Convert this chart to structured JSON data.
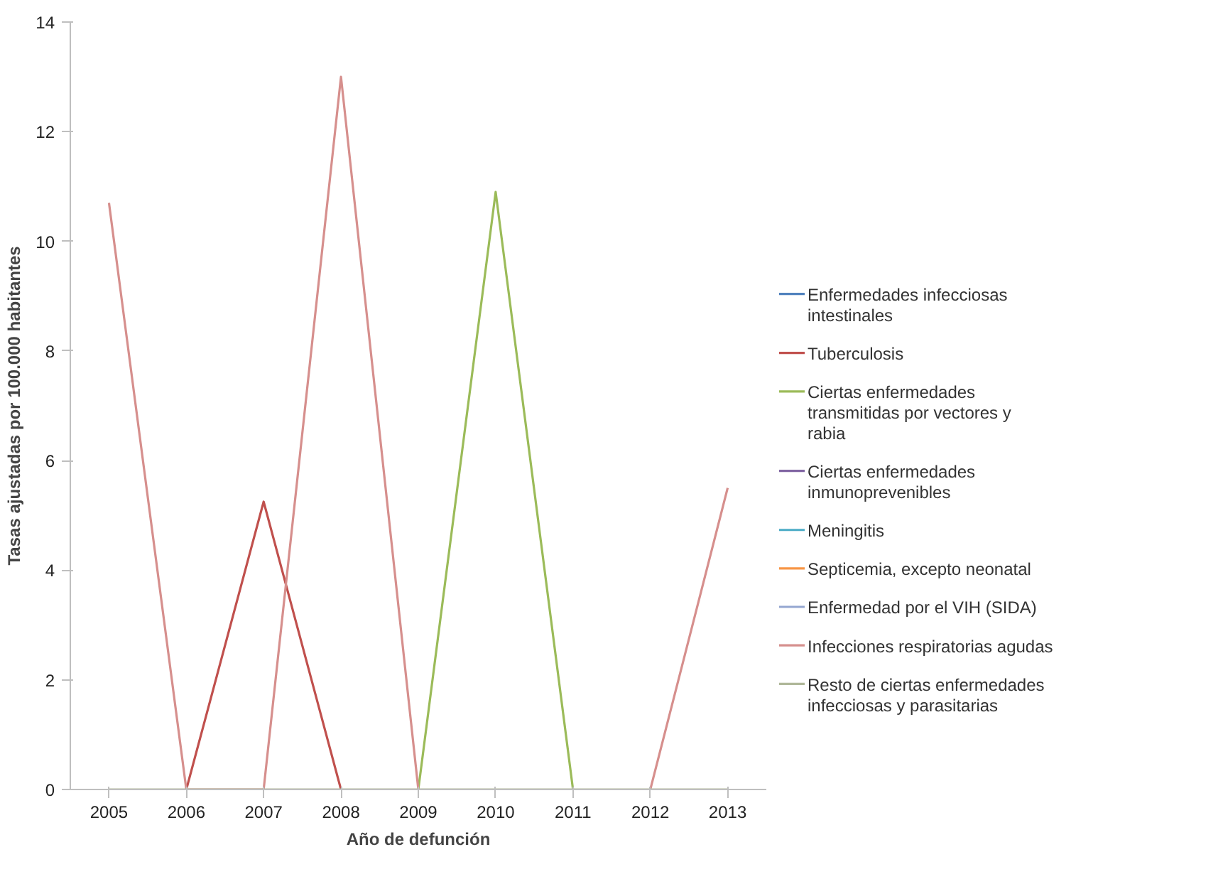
{
  "chart_data": {
    "type": "line",
    "xlabel": "Año de defunción",
    "ylabel": "Tasas ajustadas por 100.000 habitantes",
    "categories": [
      "2005",
      "2006",
      "2007",
      "2008",
      "2009",
      "2010",
      "2011",
      "2012",
      "2013"
    ],
    "ylim": [
      0,
      14
    ],
    "yticks": [
      0,
      2,
      4,
      6,
      8,
      10,
      12,
      14
    ],
    "grid": false,
    "legend": "right",
    "series": [
      {
        "name": "Enfermedades infecciosas intestinales",
        "color": "#4f81bd",
        "values": [
          null,
          null,
          null,
          null,
          null,
          null,
          null,
          null,
          null
        ]
      },
      {
        "name": "Tuberculosis",
        "color": "#c0504d",
        "values": [
          null,
          0,
          5.25,
          0,
          null,
          null,
          null,
          null,
          null
        ]
      },
      {
        "name": "Ciertas enfermedades transmitidas por vectores y rabia",
        "color": "#9bbb59",
        "values": [
          null,
          null,
          null,
          null,
          0,
          10.9,
          0,
          null,
          null
        ]
      },
      {
        "name": "Ciertas enfermedades inmunoprevenibles",
        "color": "#8064a2",
        "values": [
          null,
          null,
          null,
          null,
          null,
          null,
          null,
          null,
          null
        ]
      },
      {
        "name": "Meningitis",
        "color": "#4bacc6",
        "values": [
          null,
          null,
          null,
          null,
          null,
          null,
          null,
          null,
          null
        ]
      },
      {
        "name": "Septicemia, excepto neonatal",
        "color": "#f79646",
        "values": [
          null,
          null,
          null,
          null,
          null,
          null,
          null,
          null,
          null
        ]
      },
      {
        "name": "Enfermedad por el VIH (SIDA)",
        "color": "#95a7d1",
        "values": [
          null,
          null,
          null,
          null,
          null,
          null,
          null,
          null,
          null
        ]
      },
      {
        "name": "Infecciones respiratorias agudas",
        "color": "#d68f8d",
        "values": [
          10.7,
          0,
          0,
          13.0,
          0,
          null,
          null,
          0,
          5.5
        ]
      },
      {
        "name": "Resto de ciertas enfermedades infecciosas y parasitarias",
        "color": "#b0b89a",
        "values": [
          0,
          0,
          0,
          0,
          0,
          0,
          0,
          0,
          0
        ]
      }
    ]
  }
}
